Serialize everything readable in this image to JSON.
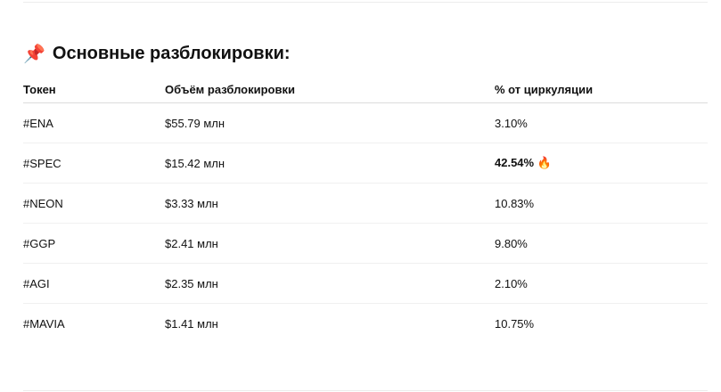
{
  "title": {
    "icon": "pushpin-icon",
    "icon_glyph": "📌",
    "text": "Основные разблокировки:"
  },
  "table": {
    "headers": [
      "Токен",
      "Объём разблокировки",
      "% от циркуляции"
    ],
    "rows": [
      {
        "token": "#ENA",
        "volume": "$55.79 млн",
        "percent": "3.10%"
      },
      {
        "token": "#SPEC",
        "volume": "$15.42 млн",
        "percent": "42.54%",
        "highlight": true,
        "emoji": "🔥"
      },
      {
        "token": "#NEON",
        "volume": "$3.33 млн",
        "percent": "10.83%"
      },
      {
        "token": "#GGP",
        "volume": "$2.41 млн",
        "percent": "9.80%"
      },
      {
        "token": "#AGI",
        "volume": "$2.35 млн",
        "percent": "2.10%"
      },
      {
        "token": "#MAVIA",
        "volume": "$1.41 млн",
        "percent": "10.75%"
      }
    ]
  }
}
